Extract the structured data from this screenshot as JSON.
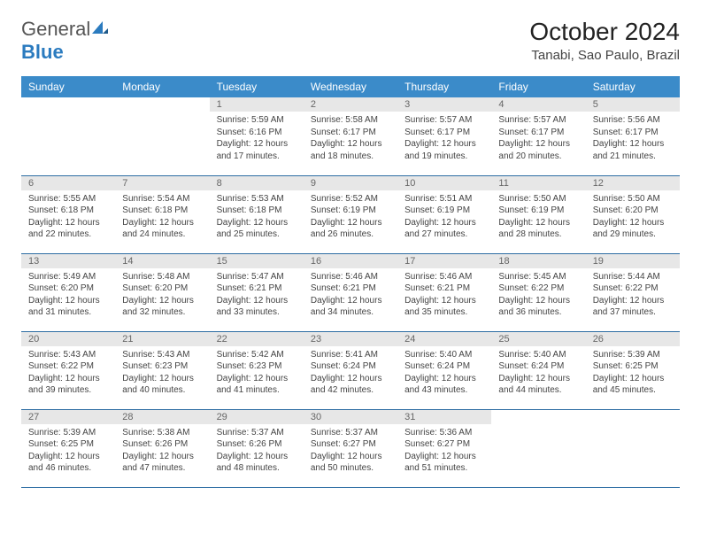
{
  "brand": {
    "name_a": "General",
    "name_b": "Blue"
  },
  "title": "October 2024",
  "location": "Tanabi, Sao Paulo, Brazil",
  "colors": {
    "header_bg": "#3b8bc9",
    "header_text": "#ffffff",
    "daynum_bg": "#e7e7e7",
    "row_divider": "#2d6da3",
    "text": "#444444",
    "brand_blue": "#2b7bbf"
  },
  "weekdays": [
    "Sunday",
    "Monday",
    "Tuesday",
    "Wednesday",
    "Thursday",
    "Friday",
    "Saturday"
  ],
  "weeks": [
    [
      {
        "empty": true
      },
      {
        "empty": true
      },
      {
        "n": "1",
        "sr": "Sunrise: 5:59 AM",
        "ss": "Sunset: 6:16 PM",
        "dl": "Daylight: 12 hours and 17 minutes."
      },
      {
        "n": "2",
        "sr": "Sunrise: 5:58 AM",
        "ss": "Sunset: 6:17 PM",
        "dl": "Daylight: 12 hours and 18 minutes."
      },
      {
        "n": "3",
        "sr": "Sunrise: 5:57 AM",
        "ss": "Sunset: 6:17 PM",
        "dl": "Daylight: 12 hours and 19 minutes."
      },
      {
        "n": "4",
        "sr": "Sunrise: 5:57 AM",
        "ss": "Sunset: 6:17 PM",
        "dl": "Daylight: 12 hours and 20 minutes."
      },
      {
        "n": "5",
        "sr": "Sunrise: 5:56 AM",
        "ss": "Sunset: 6:17 PM",
        "dl": "Daylight: 12 hours and 21 minutes."
      }
    ],
    [
      {
        "n": "6",
        "sr": "Sunrise: 5:55 AM",
        "ss": "Sunset: 6:18 PM",
        "dl": "Daylight: 12 hours and 22 minutes."
      },
      {
        "n": "7",
        "sr": "Sunrise: 5:54 AM",
        "ss": "Sunset: 6:18 PM",
        "dl": "Daylight: 12 hours and 24 minutes."
      },
      {
        "n": "8",
        "sr": "Sunrise: 5:53 AM",
        "ss": "Sunset: 6:18 PM",
        "dl": "Daylight: 12 hours and 25 minutes."
      },
      {
        "n": "9",
        "sr": "Sunrise: 5:52 AM",
        "ss": "Sunset: 6:19 PM",
        "dl": "Daylight: 12 hours and 26 minutes."
      },
      {
        "n": "10",
        "sr": "Sunrise: 5:51 AM",
        "ss": "Sunset: 6:19 PM",
        "dl": "Daylight: 12 hours and 27 minutes."
      },
      {
        "n": "11",
        "sr": "Sunrise: 5:50 AM",
        "ss": "Sunset: 6:19 PM",
        "dl": "Daylight: 12 hours and 28 minutes."
      },
      {
        "n": "12",
        "sr": "Sunrise: 5:50 AM",
        "ss": "Sunset: 6:20 PM",
        "dl": "Daylight: 12 hours and 29 minutes."
      }
    ],
    [
      {
        "n": "13",
        "sr": "Sunrise: 5:49 AM",
        "ss": "Sunset: 6:20 PM",
        "dl": "Daylight: 12 hours and 31 minutes."
      },
      {
        "n": "14",
        "sr": "Sunrise: 5:48 AM",
        "ss": "Sunset: 6:20 PM",
        "dl": "Daylight: 12 hours and 32 minutes."
      },
      {
        "n": "15",
        "sr": "Sunrise: 5:47 AM",
        "ss": "Sunset: 6:21 PM",
        "dl": "Daylight: 12 hours and 33 minutes."
      },
      {
        "n": "16",
        "sr": "Sunrise: 5:46 AM",
        "ss": "Sunset: 6:21 PM",
        "dl": "Daylight: 12 hours and 34 minutes."
      },
      {
        "n": "17",
        "sr": "Sunrise: 5:46 AM",
        "ss": "Sunset: 6:21 PM",
        "dl": "Daylight: 12 hours and 35 minutes."
      },
      {
        "n": "18",
        "sr": "Sunrise: 5:45 AM",
        "ss": "Sunset: 6:22 PM",
        "dl": "Daylight: 12 hours and 36 minutes."
      },
      {
        "n": "19",
        "sr": "Sunrise: 5:44 AM",
        "ss": "Sunset: 6:22 PM",
        "dl": "Daylight: 12 hours and 37 minutes."
      }
    ],
    [
      {
        "n": "20",
        "sr": "Sunrise: 5:43 AM",
        "ss": "Sunset: 6:22 PM",
        "dl": "Daylight: 12 hours and 39 minutes."
      },
      {
        "n": "21",
        "sr": "Sunrise: 5:43 AM",
        "ss": "Sunset: 6:23 PM",
        "dl": "Daylight: 12 hours and 40 minutes."
      },
      {
        "n": "22",
        "sr": "Sunrise: 5:42 AM",
        "ss": "Sunset: 6:23 PM",
        "dl": "Daylight: 12 hours and 41 minutes."
      },
      {
        "n": "23",
        "sr": "Sunrise: 5:41 AM",
        "ss": "Sunset: 6:24 PM",
        "dl": "Daylight: 12 hours and 42 minutes."
      },
      {
        "n": "24",
        "sr": "Sunrise: 5:40 AM",
        "ss": "Sunset: 6:24 PM",
        "dl": "Daylight: 12 hours and 43 minutes."
      },
      {
        "n": "25",
        "sr": "Sunrise: 5:40 AM",
        "ss": "Sunset: 6:24 PM",
        "dl": "Daylight: 12 hours and 44 minutes."
      },
      {
        "n": "26",
        "sr": "Sunrise: 5:39 AM",
        "ss": "Sunset: 6:25 PM",
        "dl": "Daylight: 12 hours and 45 minutes."
      }
    ],
    [
      {
        "n": "27",
        "sr": "Sunrise: 5:39 AM",
        "ss": "Sunset: 6:25 PM",
        "dl": "Daylight: 12 hours and 46 minutes."
      },
      {
        "n": "28",
        "sr": "Sunrise: 5:38 AM",
        "ss": "Sunset: 6:26 PM",
        "dl": "Daylight: 12 hours and 47 minutes."
      },
      {
        "n": "29",
        "sr": "Sunrise: 5:37 AM",
        "ss": "Sunset: 6:26 PM",
        "dl": "Daylight: 12 hours and 48 minutes."
      },
      {
        "n": "30",
        "sr": "Sunrise: 5:37 AM",
        "ss": "Sunset: 6:27 PM",
        "dl": "Daylight: 12 hours and 50 minutes."
      },
      {
        "n": "31",
        "sr": "Sunrise: 5:36 AM",
        "ss": "Sunset: 6:27 PM",
        "dl": "Daylight: 12 hours and 51 minutes."
      },
      {
        "empty": true
      },
      {
        "empty": true
      }
    ]
  ]
}
